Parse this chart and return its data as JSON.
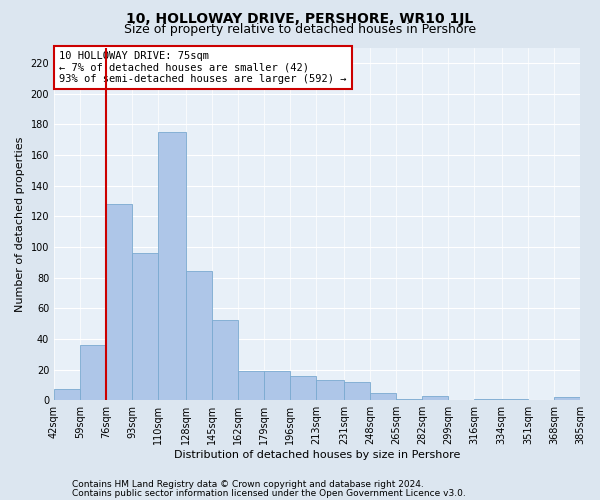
{
  "title": "10, HOLLOWAY DRIVE, PERSHORE, WR10 1JL",
  "subtitle": "Size of property relative to detached houses in Pershore",
  "xlabel": "Distribution of detached houses by size in Pershore",
  "ylabel": "Number of detached properties",
  "footnote1": "Contains HM Land Registry data © Crown copyright and database right 2024.",
  "footnote2": "Contains public sector information licensed under the Open Government Licence v3.0.",
  "annotation_line1": "10 HOLLOWAY DRIVE: 75sqm",
  "annotation_line2": "← 7% of detached houses are smaller (42)",
  "annotation_line3": "93% of semi-detached houses are larger (592) →",
  "bin_edges": [
    42,
    59,
    76,
    93,
    110,
    128,
    145,
    162,
    179,
    196,
    213,
    231,
    248,
    265,
    282,
    299,
    316,
    334,
    351,
    368,
    385
  ],
  "bar_heights": [
    7,
    36,
    128,
    96,
    175,
    84,
    52,
    19,
    19,
    16,
    13,
    12,
    5,
    1,
    3,
    0,
    1,
    1,
    0,
    2
  ],
  "bar_color": "#aec6e8",
  "bar_edgecolor": "#7aaad0",
  "vline_color": "#cc0000",
  "vline_x": 76,
  "ylim": [
    0,
    230
  ],
  "yticks": [
    0,
    20,
    40,
    60,
    80,
    100,
    120,
    140,
    160,
    180,
    200,
    220
  ],
  "bg_color": "#dce6f0",
  "axes_bg_color": "#e8f0f8",
  "grid_color": "#ffffff",
  "annotation_box_edgecolor": "#cc0000",
  "title_fontsize": 10,
  "subtitle_fontsize": 9,
  "label_fontsize": 8,
  "tick_fontsize": 7,
  "annotation_fontsize": 7.5,
  "footnote_fontsize": 6.5
}
